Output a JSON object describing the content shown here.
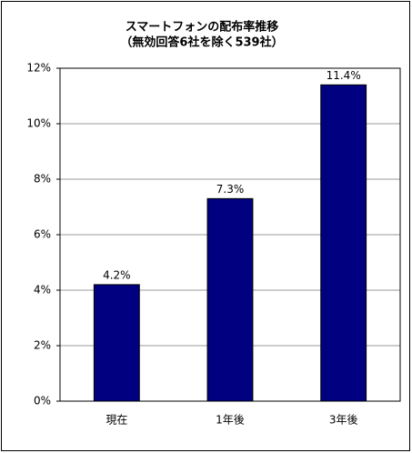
{
  "chart_data": {
    "type": "bar",
    "title": "スマートフォンの配布率推移",
    "subtitle": "（無効回答6社を除く539社）",
    "categories": [
      "現在",
      "1年後",
      "3年後"
    ],
    "values": [
      4.2,
      7.3,
      11.4
    ],
    "value_labels": [
      "4.2%",
      "7.3%",
      "11.4%"
    ],
    "color": "#000080",
    "ylim": [
      0,
      12
    ],
    "yticks": [
      {
        "value": 0,
        "label": "0%"
      },
      {
        "value": 2,
        "label": "2%"
      },
      {
        "value": 4,
        "label": "4%"
      },
      {
        "value": 6,
        "label": "6%"
      },
      {
        "value": 8,
        "label": "8%"
      },
      {
        "value": 10,
        "label": "10%"
      },
      {
        "value": 12,
        "label": "12%"
      }
    ],
    "grid": true
  }
}
